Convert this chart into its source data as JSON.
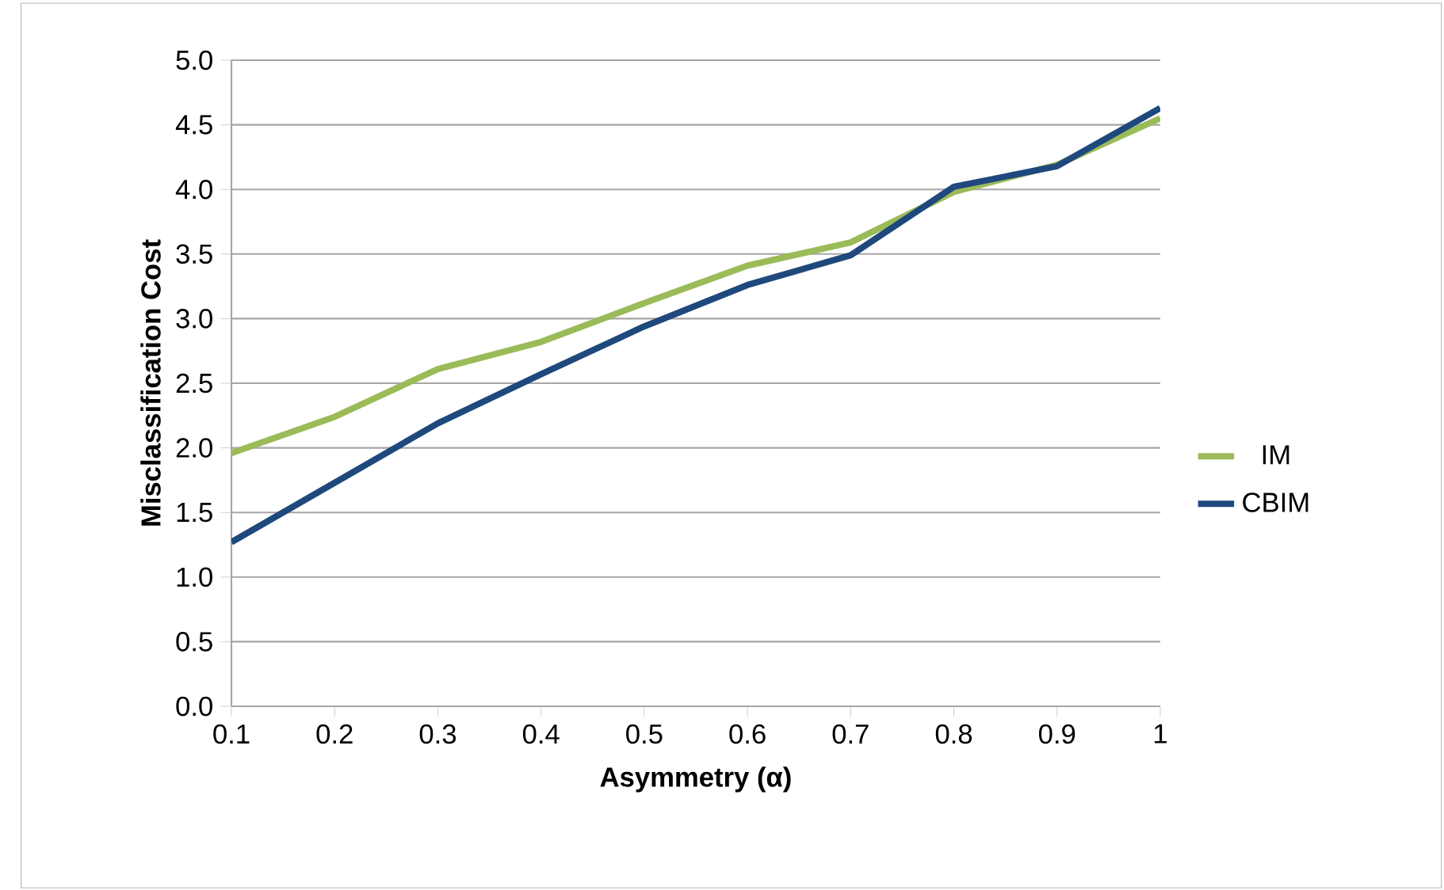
{
  "chart_data": {
    "type": "line",
    "xlabel": "Asymmetry (α)",
    "ylabel": "Misclassification Cost",
    "x": [
      0.1,
      0.2,
      0.3,
      0.4,
      0.5,
      0.6,
      0.7,
      0.8,
      0.9,
      1
    ],
    "series": [
      {
        "name": "IM",
        "color": "#9bbb59",
        "values": [
          1.96,
          2.24,
          2.61,
          2.82,
          3.12,
          3.41,
          3.59,
          3.98,
          4.19,
          4.55
        ]
      },
      {
        "name": "CBIM",
        "color": "#1f497d",
        "values": [
          1.27,
          1.73,
          2.19,
          2.57,
          2.94,
          3.26,
          3.49,
          4.02,
          4.18,
          4.63
        ]
      }
    ],
    "xlim": [
      0.1,
      1
    ],
    "xticks": [
      0.1,
      0.2,
      0.3,
      0.4,
      0.5,
      0.6,
      0.7,
      0.8,
      0.9,
      1
    ],
    "ylim": [
      0,
      5
    ],
    "yticks": [
      {
        "value": 0,
        "label": "0.0"
      },
      {
        "value": 0.5,
        "label": "0.5"
      },
      {
        "value": 1,
        "label": "1.0"
      },
      {
        "value": 1.5,
        "label": "1.5"
      },
      {
        "value": 2,
        "label": "2.0"
      },
      {
        "value": 2.5,
        "label": "2.5"
      },
      {
        "value": 3,
        "label": "3.0"
      },
      {
        "value": 3.5,
        "label": "3.5"
      },
      {
        "value": 4,
        "label": "4.0"
      },
      {
        "value": 4.5,
        "label": "4.5"
      },
      {
        "value": 5,
        "label": "5.0"
      }
    ],
    "grid": "y",
    "legend": "right",
    "marker": "none",
    "line_style": "solid"
  }
}
